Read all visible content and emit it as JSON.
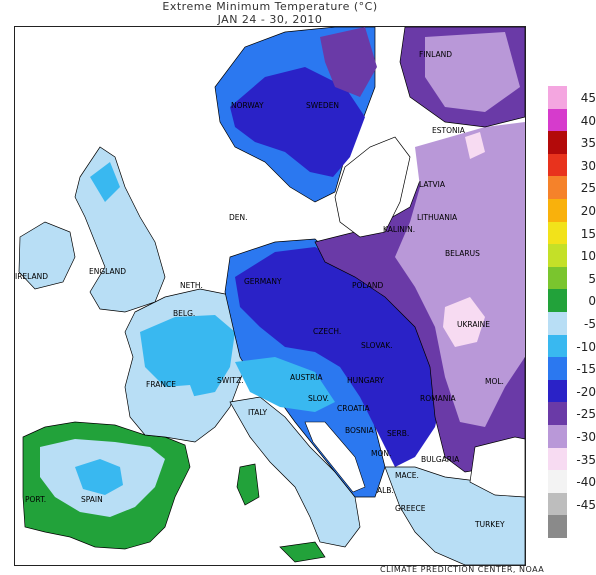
{
  "title": {
    "line1": "Extreme Minimum Temperature (°C)",
    "line2": "JAN 24 - 30, 2010"
  },
  "credit": "CLIMATE PREDICTION CENTER, NOAA",
  "legend": [
    {
      "label": "45",
      "color": "#f4a6e0"
    },
    {
      "label": "40",
      "color": "#d63bcc"
    },
    {
      "label": "35",
      "color": "#b30a0a"
    },
    {
      "label": "30",
      "color": "#e8331d"
    },
    {
      "label": "25",
      "color": "#f5822a"
    },
    {
      "label": "20",
      "color": "#f9b10c"
    },
    {
      "label": "15",
      "color": "#f2e21a"
    },
    {
      "label": "10",
      "color": "#c4e028"
    },
    {
      "label": "5",
      "color": "#7ac52e"
    },
    {
      "label": "0",
      "color": "#22a23a"
    },
    {
      "label": "-5",
      "color": "#b8def5"
    },
    {
      "label": "-10",
      "color": "#39b8f0"
    },
    {
      "label": "-15",
      "color": "#2b78f0"
    },
    {
      "label": "-20",
      "color": "#2a22c7"
    },
    {
      "label": "-25",
      "color": "#6a3aa7"
    },
    {
      "label": "-30",
      "color": "#b998d8"
    },
    {
      "label": "-35",
      "color": "#f7dbf2"
    },
    {
      "label": "-40",
      "color": "#f3f3f3"
    },
    {
      "label": "-45",
      "color": "#bdbdbd"
    },
    {
      "label": "",
      "color": "#8a8a8a"
    }
  ],
  "countries": [
    {
      "key": "finland",
      "text": "FINLAND"
    },
    {
      "key": "norway",
      "text": "NORWAY"
    },
    {
      "key": "sweden",
      "text": "SWEDEN"
    },
    {
      "key": "estonia",
      "text": "ESTONIA"
    },
    {
      "key": "latvia",
      "text": "LATVIA"
    },
    {
      "key": "lithuania",
      "text": "LITHUANIA"
    },
    {
      "key": "den",
      "text": "DEN."
    },
    {
      "key": "kalinin",
      "text": "KALININ."
    },
    {
      "key": "belarus",
      "text": "BELARUS"
    },
    {
      "key": "ireland",
      "text": "IRELAND"
    },
    {
      "key": "england",
      "text": "ENGLAND"
    },
    {
      "key": "germany",
      "text": "GERMANY"
    },
    {
      "key": "poland",
      "text": "POLAND"
    },
    {
      "key": "neth",
      "text": "NETH."
    },
    {
      "key": "belg",
      "text": "BELG."
    },
    {
      "key": "czech",
      "text": "CZECH."
    },
    {
      "key": "ukraine",
      "text": "UKRAINE"
    },
    {
      "key": "slovak",
      "text": "SLOVAK."
    },
    {
      "key": "mol",
      "text": "MOL."
    },
    {
      "key": "france",
      "text": "FRANCE"
    },
    {
      "key": "switz",
      "text": "SWITZ."
    },
    {
      "key": "austria",
      "text": "AUSTRIA"
    },
    {
      "key": "hungary",
      "text": "HUNGARY"
    },
    {
      "key": "romania",
      "text": "ROMANIA"
    },
    {
      "key": "slov",
      "text": "SLOV."
    },
    {
      "key": "croatia",
      "text": "CROATIA"
    },
    {
      "key": "italy",
      "text": "ITALY"
    },
    {
      "key": "bosnia",
      "text": "BOSNIA"
    },
    {
      "key": "serb",
      "text": "SERB."
    },
    {
      "key": "mon",
      "text": "MON."
    },
    {
      "key": "bulgaria",
      "text": "BULGARIA"
    },
    {
      "key": "mace",
      "text": "MACE."
    },
    {
      "key": "port",
      "text": "PORT."
    },
    {
      "key": "spain",
      "text": "SPAIN"
    },
    {
      "key": "alb",
      "text": "ALB."
    },
    {
      "key": "greece",
      "text": "GREECE"
    },
    {
      "key": "turkey",
      "text": "TURKEY"
    }
  ]
}
